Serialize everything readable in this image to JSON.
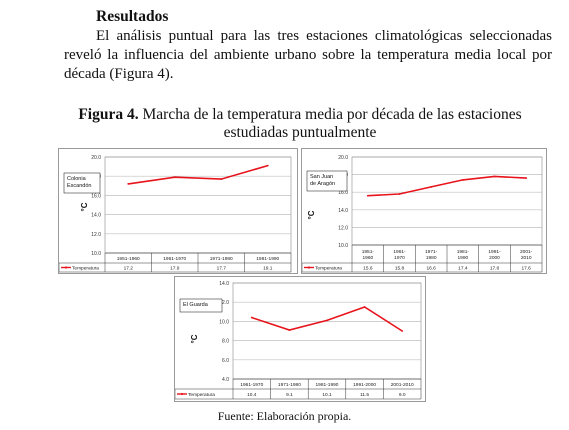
{
  "section_heading": "Resultados",
  "paragraph": "El análisis puntual para las tres estaciones climatológicas seleccionadas reveló la influencia del ambiente urbano sobre la temperatura media local por década (Figura 4).",
  "figure": {
    "label": "Figura 4.",
    "caption": "Marcha de la temperatura media por década de las estaciones estudiadas puntualmente",
    "source": "Fuente: Elaboración propia."
  },
  "colors": {
    "series": "#e8141c",
    "grid": "#bfbfbf",
    "frame": "#9a9a9a"
  },
  "chart_data": [
    {
      "type": "line",
      "station": [
        "Colonia",
        "Escandón"
      ],
      "ylabel": "°C",
      "ylim": [
        10.0,
        20.0
      ],
      "yticks": [
        "10.0",
        "12.0",
        "14.0",
        "16.0",
        "18.0",
        "20.0"
      ],
      "categories": [
        [
          "1951-1960"
        ],
        [
          "1961-1970"
        ],
        [
          "1971-1980"
        ],
        [
          "1981-1990"
        ]
      ],
      "series": [
        {
          "name": "Temperatura",
          "values": [
            17.2,
            17.9,
            17.7,
            19.1
          ],
          "value_labels": [
            "17.2",
            "17.9",
            "17.7",
            "19.1"
          ]
        }
      ],
      "grid": true,
      "legend": "data-table-left"
    },
    {
      "type": "line",
      "station": [
        "San Juan",
        "de Aragón"
      ],
      "ylabel": "°C",
      "ylim": [
        10.0,
        20.0
      ],
      "yticks": [
        "10.0",
        "12.0",
        "14.0",
        "16.0",
        "18.0",
        "20.0"
      ],
      "categories": [
        [
          "1951-",
          "1960"
        ],
        [
          "1961-",
          "1970"
        ],
        [
          "1971-",
          "1980"
        ],
        [
          "1981-",
          "1990"
        ],
        [
          "1991-",
          "2000"
        ],
        [
          "2001-",
          "2010"
        ]
      ],
      "series": [
        {
          "name": "Temperatura",
          "values": [
            15.6,
            15.8,
            16.6,
            17.4,
            17.8,
            17.6
          ],
          "value_labels": [
            "15.6",
            "15.8",
            "16.6",
            "17.4",
            "17.8",
            "17.6"
          ]
        }
      ],
      "grid": true,
      "legend": "data-table-left"
    },
    {
      "type": "line",
      "station": [
        "El Guarda"
      ],
      "ylabel": "°C",
      "ylim": [
        4.0,
        14.0
      ],
      "yticks": [
        "4.0",
        "6.0",
        "8.0",
        "10.0",
        "12.0",
        "14.0"
      ],
      "categories": [
        [
          "1961-1970"
        ],
        [
          "1971-1980"
        ],
        [
          "1981-1990"
        ],
        [
          "1991-2000"
        ],
        [
          "2001-2010"
        ]
      ],
      "series": [
        {
          "name": "Temperatura",
          "values": [
            10.4,
            9.1,
            10.1,
            11.5,
            9.0
          ],
          "value_labels": [
            "10.4",
            "9.1",
            "10.1",
            "11.5",
            "9.0"
          ]
        }
      ],
      "grid": true,
      "legend": "data-table-left"
    }
  ]
}
